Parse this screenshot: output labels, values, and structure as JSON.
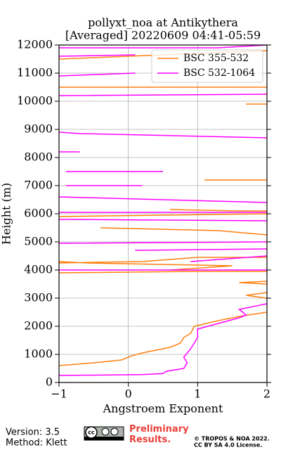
{
  "chart_data": {
    "type": "line",
    "title": "pollyxt_noa at Antikythera",
    "subtitle": "[Averaged] 20220609 04:41-05:59",
    "x_label": "Angstroem Exponent",
    "y_label": "Height (m)",
    "xlim": [
      -1,
      2
    ],
    "xticks": [
      {
        "value": -1,
        "label": "−1"
      },
      0,
      1,
      2
    ],
    "ylim": [
      0,
      12000
    ],
    "yticks": [
      0,
      1000,
      2000,
      3000,
      4000,
      5000,
      6000,
      7000,
      8000,
      9000,
      10000,
      11000,
      12000
    ],
    "grid": true,
    "legend": "upper right",
    "series": [
      {
        "name": "BSC 355-532",
        "color": "#ff7f0e",
        "x": [
          -1,
          -0.5,
          -0.1,
          0.05,
          0.2,
          0.6,
          0.75,
          0.8,
          0.9,
          0.95,
          1.3,
          1.6,
          2.0,
          null,
          2.0,
          1.7,
          2.0,
          null,
          2.0,
          1.6,
          2.0,
          null,
          -1,
          1.0,
          2.0,
          null,
          0.6,
          1.5,
          -0.6,
          -1,
          null,
          -1,
          0.2,
          1.0,
          2.0,
          null,
          -0.4,
          1.3,
          2.0,
          null,
          -1,
          0.5,
          2.0,
          null,
          0.6,
          1.6,
          2.0,
          null,
          1.1,
          2.0,
          null,
          1.7,
          2.0,
          null,
          -1,
          2.0,
          null,
          -1,
          2.0
        ],
        "y": [
          600,
          700,
          800,
          950,
          1050,
          1250,
          1400,
          1600,
          1750,
          2000,
          2200,
          2350,
          2500,
          null,
          3000,
          3100,
          3200,
          null,
          3500,
          3550,
          3600,
          null,
          3900,
          3950,
          3950,
          null,
          4000,
          4150,
          4250,
          4300,
          null,
          4250,
          4300,
          4450,
          4450,
          null,
          5500,
          5400,
          5250,
          null,
          5900,
          5950,
          6000,
          null,
          6150,
          6100,
          6100,
          null,
          7200,
          7200,
          null,
          9900,
          9900,
          null,
          10500,
          10500,
          null,
          11500,
          11800
        ]
      },
      {
        "name": "BSC 532-1064",
        "color": "#ff00ff",
        "x": [
          -1,
          0.2,
          0.5,
          0.55,
          0.8,
          0.85,
          0.8,
          0.9,
          1.0,
          1.0,
          1.3,
          1.6,
          1.7,
          1.6,
          2.0,
          null,
          -1,
          2.0,
          null,
          0.9,
          2.0,
          null,
          0.1,
          2.0,
          null,
          -1,
          2.0,
          null,
          -1,
          2.0,
          null,
          -1,
          2.0,
          null,
          -1,
          2.0,
          null,
          -0.9,
          0.2,
          null,
          -0.9,
          0.5,
          null,
          -0.7,
          -1,
          null,
          -1,
          -0.7,
          2.0,
          null,
          -1,
          2.0,
          null,
          -1,
          0.1,
          null,
          -1,
          0.1,
          null,
          -1,
          1.3,
          2.0
        ],
        "y": [
          250,
          280,
          320,
          400,
          500,
          700,
          900,
          1200,
          1600,
          1900,
          2100,
          2300,
          2400,
          2600,
          2800,
          null,
          4000,
          4000,
          null,
          4300,
          4500,
          null,
          4700,
          4750,
          null,
          4950,
          5000,
          null,
          5800,
          5750,
          null,
          6050,
          6050,
          null,
          6600,
          6400,
          null,
          7000,
          7000,
          null,
          7500,
          7500,
          null,
          8200,
          8200,
          null,
          8900,
          8850,
          8700,
          null,
          10200,
          10250,
          null,
          10900,
          11000,
          null,
          11600,
          11650,
          null,
          11900,
          11900,
          12000
        ]
      }
    ]
  },
  "footer": {
    "version": "Version: 3.5",
    "method": "Method: Klett",
    "preliminary": "Preliminary Results.",
    "copyright": "© TROPOS & NOA 2022.",
    "license": "CC BY SA 4.0 License.",
    "cc_badge": "cc"
  }
}
